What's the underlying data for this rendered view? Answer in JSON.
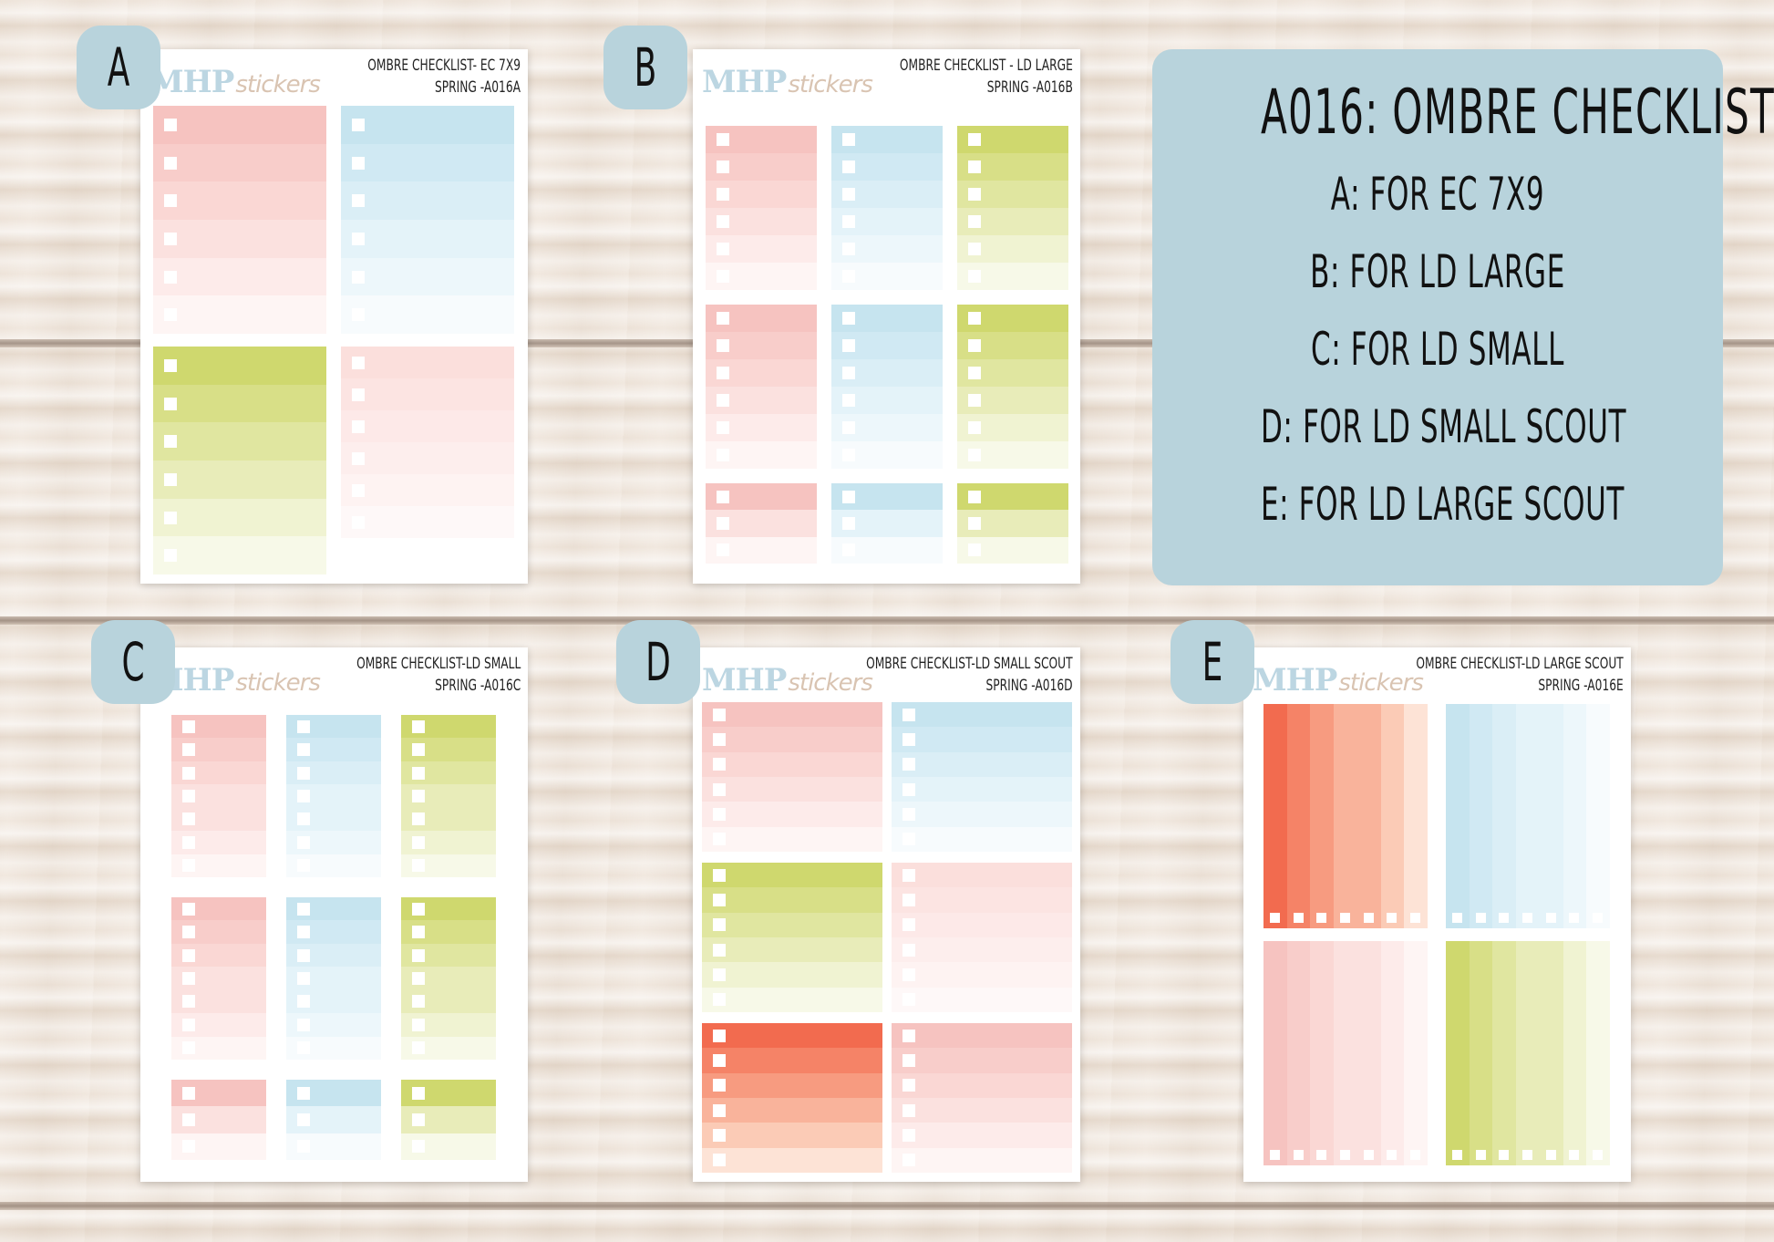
{
  "panel": {
    "title": "A016: OMBRE CHECKLIST",
    "lines": [
      "A: FOR EC 7X9",
      "B: FOR LD LARGE",
      "C: FOR LD SMALL",
      "D: FOR LD SMALL SCOUT",
      "E: FOR LD LARGE SCOUT"
    ]
  },
  "logo": {
    "main": "MHP",
    "script": "stickers"
  },
  "sheets": [
    {
      "badge": "A",
      "title1": "OMBRE CHECKLIST- EC 7X9",
      "title2": "SPRING -A016A"
    },
    {
      "badge": "B",
      "title1": "OMBRE CHECKLIST - LD LARGE",
      "title2": "SPRING -A016B"
    },
    {
      "badge": "C",
      "title1": "OMBRE CHECKLIST-LD SMALL",
      "title2": "SPRING -A016C"
    },
    {
      "badge": "D",
      "title1": "OMBRE CHECKLIST-LD SMALL SCOUT",
      "title2": "SPRING -A016D"
    },
    {
      "badge": "E",
      "title1": "OMBRE CHECKLIST-LD LARGE SCOUT",
      "title2": "SPRING -A016E"
    }
  ],
  "palettes": {
    "pink": [
      "#f6c3c0",
      "#f8cdca",
      "#fad7d4",
      "#fbe1df",
      "#fdebea",
      "#fef5f4"
    ],
    "blue": [
      "#c6e4ef",
      "#d0e9f3",
      "#daeef6",
      "#e4f3f9",
      "#edf7fb",
      "#f7fbfd"
    ],
    "green": [
      "#cfd86e",
      "#d8df87",
      "#e0e6a0",
      "#e8ecb9",
      "#f0f3d2",
      "#f7f9e8"
    ],
    "lightpink": [
      "#fbdfdc",
      "#fce4e2",
      "#fde9e8",
      "#fdeeed",
      "#fef3f2",
      "#fef8f8"
    ],
    "coral": [
      "#f26b4f",
      "#f58367",
      "#f79b80",
      "#f9b39b",
      "#fbcbb6",
      "#fde3d6"
    ]
  }
}
